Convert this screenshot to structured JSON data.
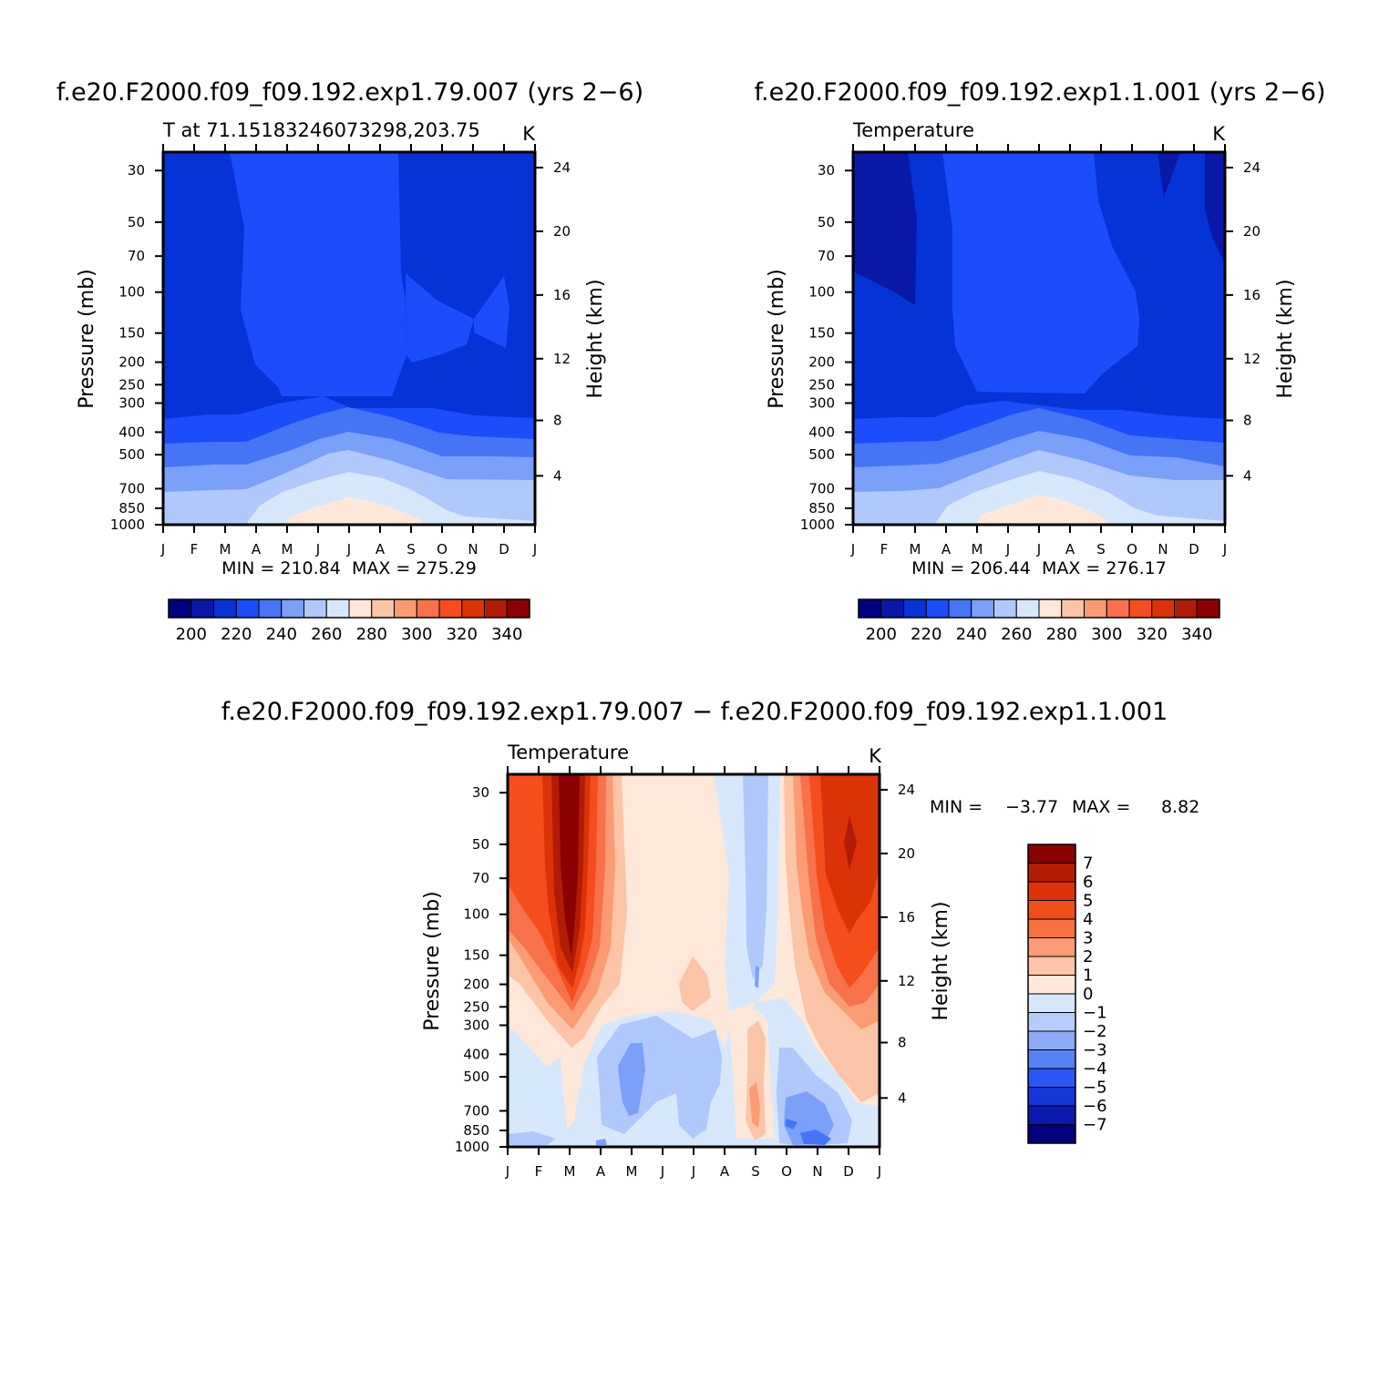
{
  "chart_data": [
    {
      "type": "heatmap",
      "title": "f.e20.F2000.f09_f09.192.exp1.79.007 (yrs 2−6)",
      "left_label": "T at 71.15183246073298,203.75",
      "units": "K",
      "ylabel": "Pressure (mb)",
      "ylabel_right": "Height (km)",
      "x_ticks": [
        "J",
        "F",
        "M",
        "A",
        "M",
        "J",
        "J",
        "A",
        "S",
        "O",
        "N",
        "D",
        "J"
      ],
      "y_ticks": [
        30,
        50,
        70,
        100,
        150,
        200,
        250,
        300,
        400,
        500,
        700,
        850,
        1000
      ],
      "height_ticks": [
        4,
        8,
        12,
        16,
        20,
        24
      ],
      "ylim": [
        1000,
        25
      ],
      "min_max_text": "MIN = 210.84  MAX = 275.29",
      "min": 210.84,
      "max": 275.29,
      "colorbar_levels": [
        195,
        200,
        205,
        210,
        215,
        220,
        225,
        230,
        235,
        240,
        245,
        250,
        255,
        260,
        265,
        270,
        275,
        280,
        285,
        290,
        295,
        300,
        305,
        310,
        315,
        320,
        325,
        330,
        335,
        340,
        345
      ],
      "colorbar_labels": [
        "200",
        "220",
        "240",
        "260",
        "280",
        "300",
        "320",
        "340"
      ],
      "pressure_profile_K": [
        [
          30,
          211
        ],
        [
          50,
          212
        ],
        [
          70,
          213
        ],
        [
          100,
          214
        ],
        [
          150,
          216
        ],
        [
          200,
          218
        ],
        [
          250,
          219
        ],
        [
          300,
          221
        ],
        [
          400,
          234
        ],
        [
          500,
          246
        ],
        [
          700,
          260
        ],
        [
          850,
          268
        ],
        [
          1000,
          273
        ]
      ]
    },
    {
      "type": "heatmap",
      "title": "f.e20.F2000.f09_f09.192.exp1.1.001 (yrs 2−6)",
      "left_label": "Temperature",
      "units": "K",
      "ylabel": "Pressure (mb)",
      "ylabel_right": "Height (km)",
      "x_ticks": [
        "J",
        "F",
        "M",
        "A",
        "M",
        "J",
        "J",
        "A",
        "S",
        "O",
        "N",
        "D",
        "J"
      ],
      "y_ticks": [
        30,
        50,
        70,
        100,
        150,
        200,
        250,
        300,
        400,
        500,
        700,
        850,
        1000
      ],
      "height_ticks": [
        4,
        8,
        12,
        16,
        20,
        24
      ],
      "ylim": [
        1000,
        25
      ],
      "min_max_text": "MIN = 206.44  MAX = 276.17",
      "min": 206.44,
      "max": 276.17,
      "colorbar_levels": [
        195,
        200,
        205,
        210,
        215,
        220,
        225,
        230,
        235,
        240,
        245,
        250,
        255,
        260,
        265,
        270,
        275,
        280,
        285,
        290,
        295,
        300,
        305,
        310,
        315,
        320,
        325,
        330,
        335,
        340,
        345
      ],
      "colorbar_labels": [
        "200",
        "220",
        "240",
        "260",
        "280",
        "300",
        "320",
        "340"
      ]
    },
    {
      "type": "heatmap",
      "title": "f.e20.F2000.f09_f09.192.exp1.79.007 − f.e20.F2000.f09_f09.192.exp1.1.001",
      "left_label": "Temperature",
      "units": "K",
      "ylabel": "Pressure (mb)",
      "ylabel_right": "Height (km)",
      "x_ticks": [
        "J",
        "F",
        "M",
        "A",
        "M",
        "J",
        "J",
        "A",
        "S",
        "O",
        "N",
        "D",
        "J"
      ],
      "y_ticks": [
        30,
        50,
        70,
        100,
        150,
        200,
        250,
        300,
        400,
        500,
        700,
        850,
        1000
      ],
      "height_ticks": [
        4,
        8,
        12,
        16,
        20,
        24
      ],
      "ylim": [
        1000,
        25
      ],
      "min_label": "MIN =",
      "min_value": "−3.77",
      "max_label": "MAX =",
      "max_value": "8.82",
      "min": -3.77,
      "max": 8.82,
      "colorbar_levels": [
        -8,
        -7,
        -6,
        -5,
        -4,
        -3,
        -2,
        -1,
        0,
        1,
        2,
        3,
        4,
        5,
        6,
        7,
        8
      ],
      "colorbar_labels": [
        "7",
        "6",
        "5",
        "4",
        "3",
        "2",
        "1",
        "0",
        "−1",
        "−2",
        "−3",
        "−4",
        "−5",
        "−6",
        "−7"
      ]
    }
  ],
  "colors": {
    "abs_palette": [
      "#000080",
      "#0a18a8",
      "#0533d6",
      "#1c4dfa",
      "#4575f5",
      "#7aa0fa",
      "#b0c9fc",
      "#d7e8fd",
      "#ffe8d9",
      "#fcc4a6",
      "#fb9b74",
      "#f7714a",
      "#f54d1c",
      "#dc3208",
      "#b01c05",
      "#8b0000"
    ],
    "diff_palette": [
      "#000080",
      "#0a1ab0",
      "#1636d6",
      "#2b55f5",
      "#5781f5",
      "#8fabf8",
      "#b6cdfc",
      "#d7e8fd",
      "#ffe8d9",
      "#fcc5a8",
      "#fb9c76",
      "#f7713f",
      "#f24e1b",
      "#dd3308",
      "#b51c04",
      "#8b0000"
    ]
  }
}
